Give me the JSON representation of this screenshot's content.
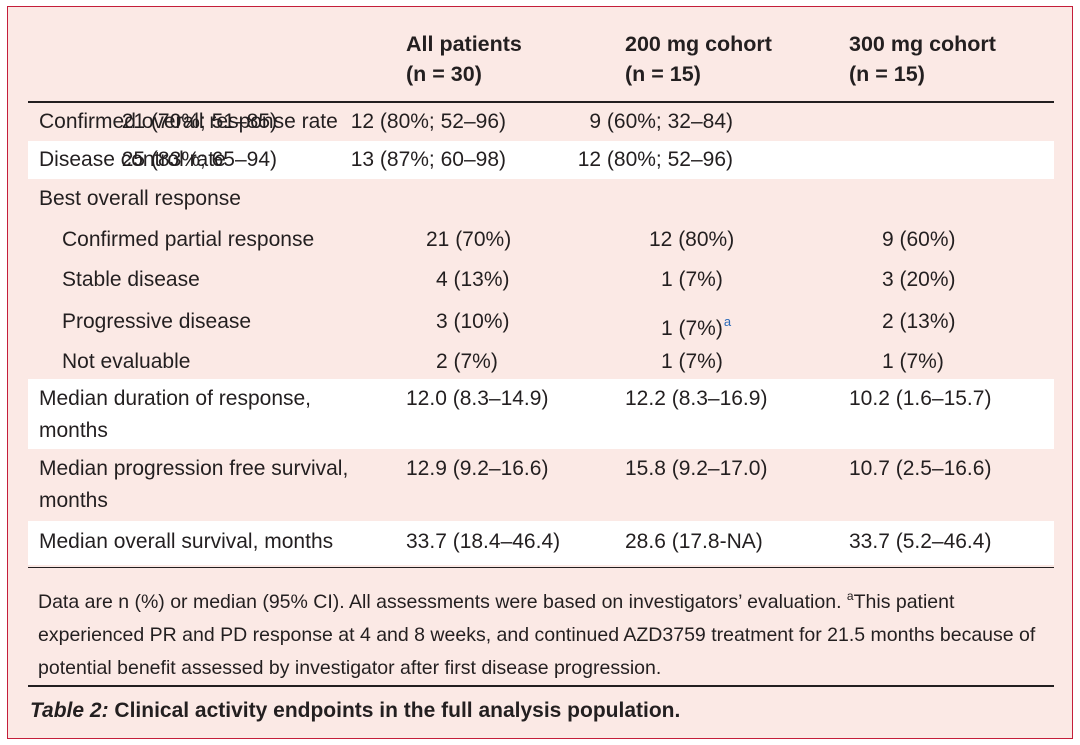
{
  "header": {
    "col1": [
      "All patients",
      "(n = 30)"
    ],
    "col2": [
      "200 mg cohort",
      "(n = 15)"
    ],
    "col3": [
      "300 mg cohort",
      "(n = 15)"
    ]
  },
  "rows": [
    {
      "label": "Confirmed overall response rate",
      "v1": "21 (70%; 51–85)",
      "v2": "12 (80%; 52–96)",
      "v3": "9 (60%; 32–84)"
    },
    {
      "label": "Disease control rate",
      "v1": "25 (83%; 65–94)",
      "v2": "13 (87%; 60–98)",
      "v3": "12 (80%; 52–96)"
    },
    {
      "label": "Best overall response"
    },
    {
      "label": "Confirmed partial response",
      "v1": "21 (70%)",
      "v2": "12 (80%)",
      "v3": "9 (60%)"
    },
    {
      "label": "Stable disease",
      "v1": "4 (13%)",
      "v2": "1 (7%)",
      "v3": "3 (20%)"
    },
    {
      "label": "Progressive disease",
      "v1": "3 (10%)",
      "v2": "1 (7%)",
      "v2_sup": "a",
      "v3": "2 (13%)"
    },
    {
      "label": "Not evaluable",
      "v1": "2 (7%)",
      "v2": "1 (7%)",
      "v3": "1 (7%)"
    },
    {
      "label_lines": [
        "Median duration of response,",
        "months"
      ],
      "v1": "12.0 (8.3–14.9)",
      "v2": "12.2 (8.3–16.9)",
      "v3": "10.2 (1.6–15.7)"
    },
    {
      "label_lines": [
        "Median progression free survival,",
        "months"
      ],
      "v1": "12.9 (9.2–16.6)",
      "v2": "15.8 (9.2–17.0)",
      "v3": "10.7 (2.5–16.6)"
    },
    {
      "label": "Median overall survival, months",
      "v1": "33.7 (18.4–46.4)",
      "v2": "28.6 (17.8-NA)",
      "v3": "33.7 (5.2–46.4)"
    }
  ],
  "footnote": {
    "part1": "Data are n (%) or median (95% CI). All assessments were based on investigators’ evaluation. ",
    "sup": "a",
    "part2": "This patient experienced PR and PD response at 4 and 8 weeks, and continued AZD3759 treatment for 21.5 months because of potential benefit assessed by investigator after first disease progression."
  },
  "caption": {
    "label": "Table 2:",
    "text": " Clinical activity endpoints in the full analysis population."
  }
}
